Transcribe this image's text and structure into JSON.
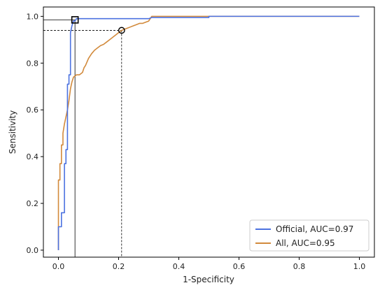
{
  "chart_data": {
    "type": "line",
    "title": "",
    "xlabel": "1-Specificity",
    "ylabel": "Sensitivity",
    "xlim": [
      -0.05,
      1.05
    ],
    "ylim": [
      -0.03,
      1.04
    ],
    "xticks": [
      "0.0",
      "0.2",
      "0.4",
      "0.6",
      "0.8",
      "1.0"
    ],
    "yticks": [
      "0.0",
      "0.2",
      "0.4",
      "0.6",
      "0.8",
      "1.0"
    ],
    "grid": false,
    "legend_position": "lower-right",
    "series": [
      {
        "name": "Official, AUC=0.97",
        "color": "#4c72e0",
        "x": [
          0.0,
          0.0,
          0.01,
          0.01,
          0.02,
          0.02,
          0.025,
          0.025,
          0.03,
          0.03,
          0.035,
          0.035,
          0.04,
          0.04,
          0.045,
          0.05,
          0.055,
          0.06,
          0.065,
          0.07,
          0.1,
          0.2,
          0.3,
          0.31,
          0.4,
          0.5,
          0.5,
          0.6,
          0.8,
          1.0
        ],
        "y": [
          0.0,
          0.1,
          0.1,
          0.16,
          0.16,
          0.37,
          0.37,
          0.43,
          0.43,
          0.71,
          0.71,
          0.75,
          0.75,
          0.93,
          0.96,
          0.98,
          0.98,
          0.99,
          0.99,
          0.99,
          0.99,
          0.99,
          0.99,
          0.995,
          0.995,
          0.995,
          1.0,
          1.0,
          1.0,
          1.0
        ]
      },
      {
        "name": "All, AUC=0.95",
        "color": "#d28a3c",
        "x": [
          0.0,
          0.0,
          0.005,
          0.005,
          0.01,
          0.01,
          0.015,
          0.015,
          0.02,
          0.025,
          0.03,
          0.035,
          0.04,
          0.045,
          0.05,
          0.055,
          0.06,
          0.07,
          0.08,
          0.085,
          0.09,
          0.1,
          0.11,
          0.12,
          0.13,
          0.14,
          0.15,
          0.16,
          0.17,
          0.18,
          0.19,
          0.2,
          0.21,
          0.22,
          0.23,
          0.24,
          0.25,
          0.26,
          0.27,
          0.28,
          0.29,
          0.3,
          0.31,
          0.32,
          0.4,
          0.6,
          0.8,
          1.0
        ],
        "y": [
          0.0,
          0.3,
          0.3,
          0.37,
          0.37,
          0.45,
          0.45,
          0.5,
          0.54,
          0.57,
          0.6,
          0.64,
          0.69,
          0.72,
          0.74,
          0.745,
          0.75,
          0.75,
          0.76,
          0.78,
          0.79,
          0.82,
          0.84,
          0.855,
          0.865,
          0.875,
          0.88,
          0.89,
          0.9,
          0.91,
          0.92,
          0.93,
          0.94,
          0.945,
          0.95,
          0.955,
          0.96,
          0.965,
          0.97,
          0.97,
          0.975,
          0.98,
          1.0,
          1.0,
          1.0,
          1.0,
          1.0,
          1.0
        ]
      }
    ],
    "markers": [
      {
        "name": "official-operating-point",
        "shape": "square",
        "x": 0.055,
        "y": 0.985,
        "color": "#000000"
      },
      {
        "name": "all-operating-point",
        "shape": "circle",
        "x": 0.21,
        "y": 0.94,
        "color": "#000000"
      }
    ]
  }
}
